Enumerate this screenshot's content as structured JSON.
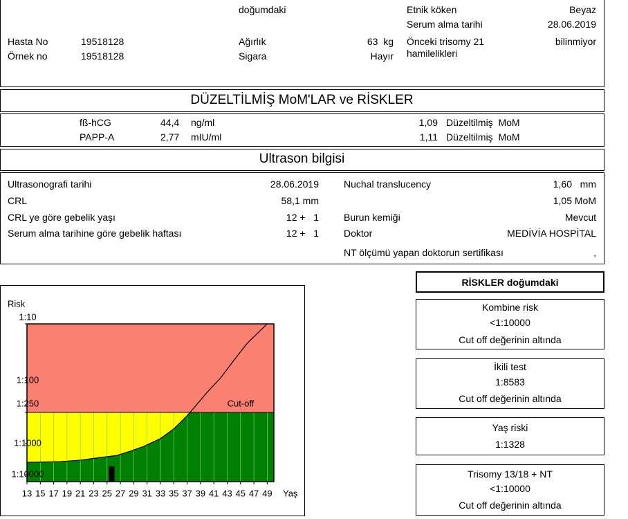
{
  "header_info": {
    "birth_label": "doğumdaki",
    "ethnicity": {
      "label": "Etnik köken",
      "value": "Beyaz"
    },
    "serum_date": {
      "label": "Serum alma tarihi",
      "value": "28.06.2019"
    },
    "patient_no": {
      "label": "Hasta No",
      "value": "19518128"
    },
    "sample_no": {
      "label": "Örnek no",
      "value": "19518128"
    },
    "weight": {
      "label": "Ağırlık",
      "value": "63  kg"
    },
    "smoking": {
      "label": "Sigara",
      "value": "Hayır"
    },
    "previous": {
      "label": "Önceki trisomy 21 hamilelikleri",
      "value": "bilinmiyor"
    }
  },
  "mom": {
    "title": "DÜZELTİLMİŞ  MoM'LAR ve RİSKLER",
    "rows": [
      {
        "name": "fß-hCG",
        "value": "44,4",
        "unit": "ng/ml",
        "mom": "1,09",
        "mom_label": "Düzeltilmiş  MoM"
      },
      {
        "name": "PAPP-A",
        "value": "2,77",
        "unit": "mIU/ml",
        "mom": "1,11",
        "mom_label": "Düzeltilmiş  MoM"
      }
    ]
  },
  "ultrasound": {
    "title": "Ultrason bilgisi",
    "left": [
      {
        "label": "Ultrasonografi tarihi",
        "value": "28.06.2019"
      },
      {
        "label": "CRL",
        "value": "58,1 mm"
      },
      {
        "label": "CRL ye göre gebelik yaşı",
        "value": "12 +   1"
      },
      {
        "label": "Serum alma tarihine göre gebelik haftası",
        "value": "12 +   1"
      }
    ],
    "right": [
      {
        "label": "Nuchal translucency",
        "value": "1,60   mm"
      },
      {
        "value": "1,05 MoM"
      },
      {
        "label": "Burun kemiği",
        "value": "Mevcut"
      },
      {
        "label": "Doktor",
        "value": "MEDİVİA HOSPİTAL"
      },
      {
        "label": "NT ölçümü yapan doktorun sertifikası",
        "value": ","
      }
    ]
  },
  "chart_data": {
    "type": "line",
    "y_label": "Risk",
    "x_label": "Yaş",
    "xlim": [
      13,
      50
    ],
    "xticks": [
      13,
      15,
      17,
      19,
      21,
      23,
      25,
      27,
      29,
      31,
      33,
      35,
      37,
      39,
      41,
      43,
      45,
      47,
      49
    ],
    "ylim": [
      10,
      10000
    ],
    "log_y": true,
    "yticks": [
      {
        "value": 10,
        "label": "1:10"
      },
      {
        "value": 100,
        "label": "1:100"
      },
      {
        "value": 250,
        "label": "1:250"
      },
      {
        "value": 1000,
        "label": "1:1000"
      },
      {
        "value": 10000,
        "label": "1:10000"
      }
    ],
    "x": [
      13,
      18,
      21,
      24,
      26.5,
      28.5,
      30.5,
      33,
      35,
      37,
      38,
      40,
      42,
      44,
      46,
      49
    ],
    "values": [
      4000,
      3800,
      3400,
      2800,
      2400,
      1750,
      1230,
      800,
      520,
      290,
      220,
      140,
      90,
      44,
      22,
      10
    ],
    "color": "#000000",
    "cutoff": {
      "value": 250,
      "label": "Cut-off"
    },
    "zone_colors": {
      "high": "#fa8072",
      "mid": "#ffff00",
      "low": "#008000"
    },
    "marker": {
      "x": 25.7,
      "color": "#000000"
    }
  },
  "risks": {
    "title": "RİSKLER doğumdaki",
    "items": [
      {
        "name": "Kombine risk",
        "value": "<1:10000",
        "note": "Cut off değerinin altında"
      },
      {
        "name": "İkili test",
        "value": "1:8583",
        "note": "Cut off değerinin altında"
      },
      {
        "name": "Yaş riski",
        "value": "1:1328"
      },
      {
        "name": "Trisomy 13/18 + NT",
        "value": "<1:10000",
        "note": "Cut off değerinin altında"
      }
    ]
  }
}
